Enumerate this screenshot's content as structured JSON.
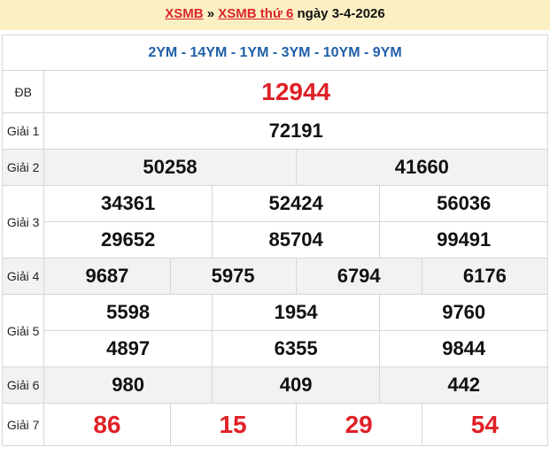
{
  "header": {
    "link1": "XSMB",
    "sep": " » ",
    "link2": "XSMB thứ 6",
    "date_text": " ngày 3-4-2026"
  },
  "codes": "2YM - 14YM - 1YM - 3YM - 10YM - 9YM",
  "prizes": {
    "db": {
      "label": "ĐB",
      "values": [
        "12944"
      ]
    },
    "g1": {
      "label": "Giải 1",
      "values": [
        "72191"
      ]
    },
    "g2": {
      "label": "Giải 2",
      "values": [
        "50258",
        "41660"
      ]
    },
    "g3": {
      "label": "Giải 3",
      "values": [
        "34361",
        "52424",
        "56036",
        "29652",
        "85704",
        "99491"
      ]
    },
    "g4": {
      "label": "Giải 4",
      "values": [
        "9687",
        "5975",
        "6794",
        "6176"
      ]
    },
    "g5": {
      "label": "Giải 5",
      "values": [
        "5598",
        "1954",
        "9760",
        "4897",
        "6355",
        "9844"
      ]
    },
    "g6": {
      "label": "Giải 6",
      "values": [
        "980",
        "409",
        "442"
      ]
    },
    "g7": {
      "label": "Giải 7",
      "values": [
        "86",
        "15",
        "29",
        "54"
      ]
    }
  },
  "colors": {
    "accent_red": "#e02027",
    "code_blue": "#1f5fa8",
    "header_bg": "#fcefc3",
    "alt_row": "#f2f2f2"
  }
}
